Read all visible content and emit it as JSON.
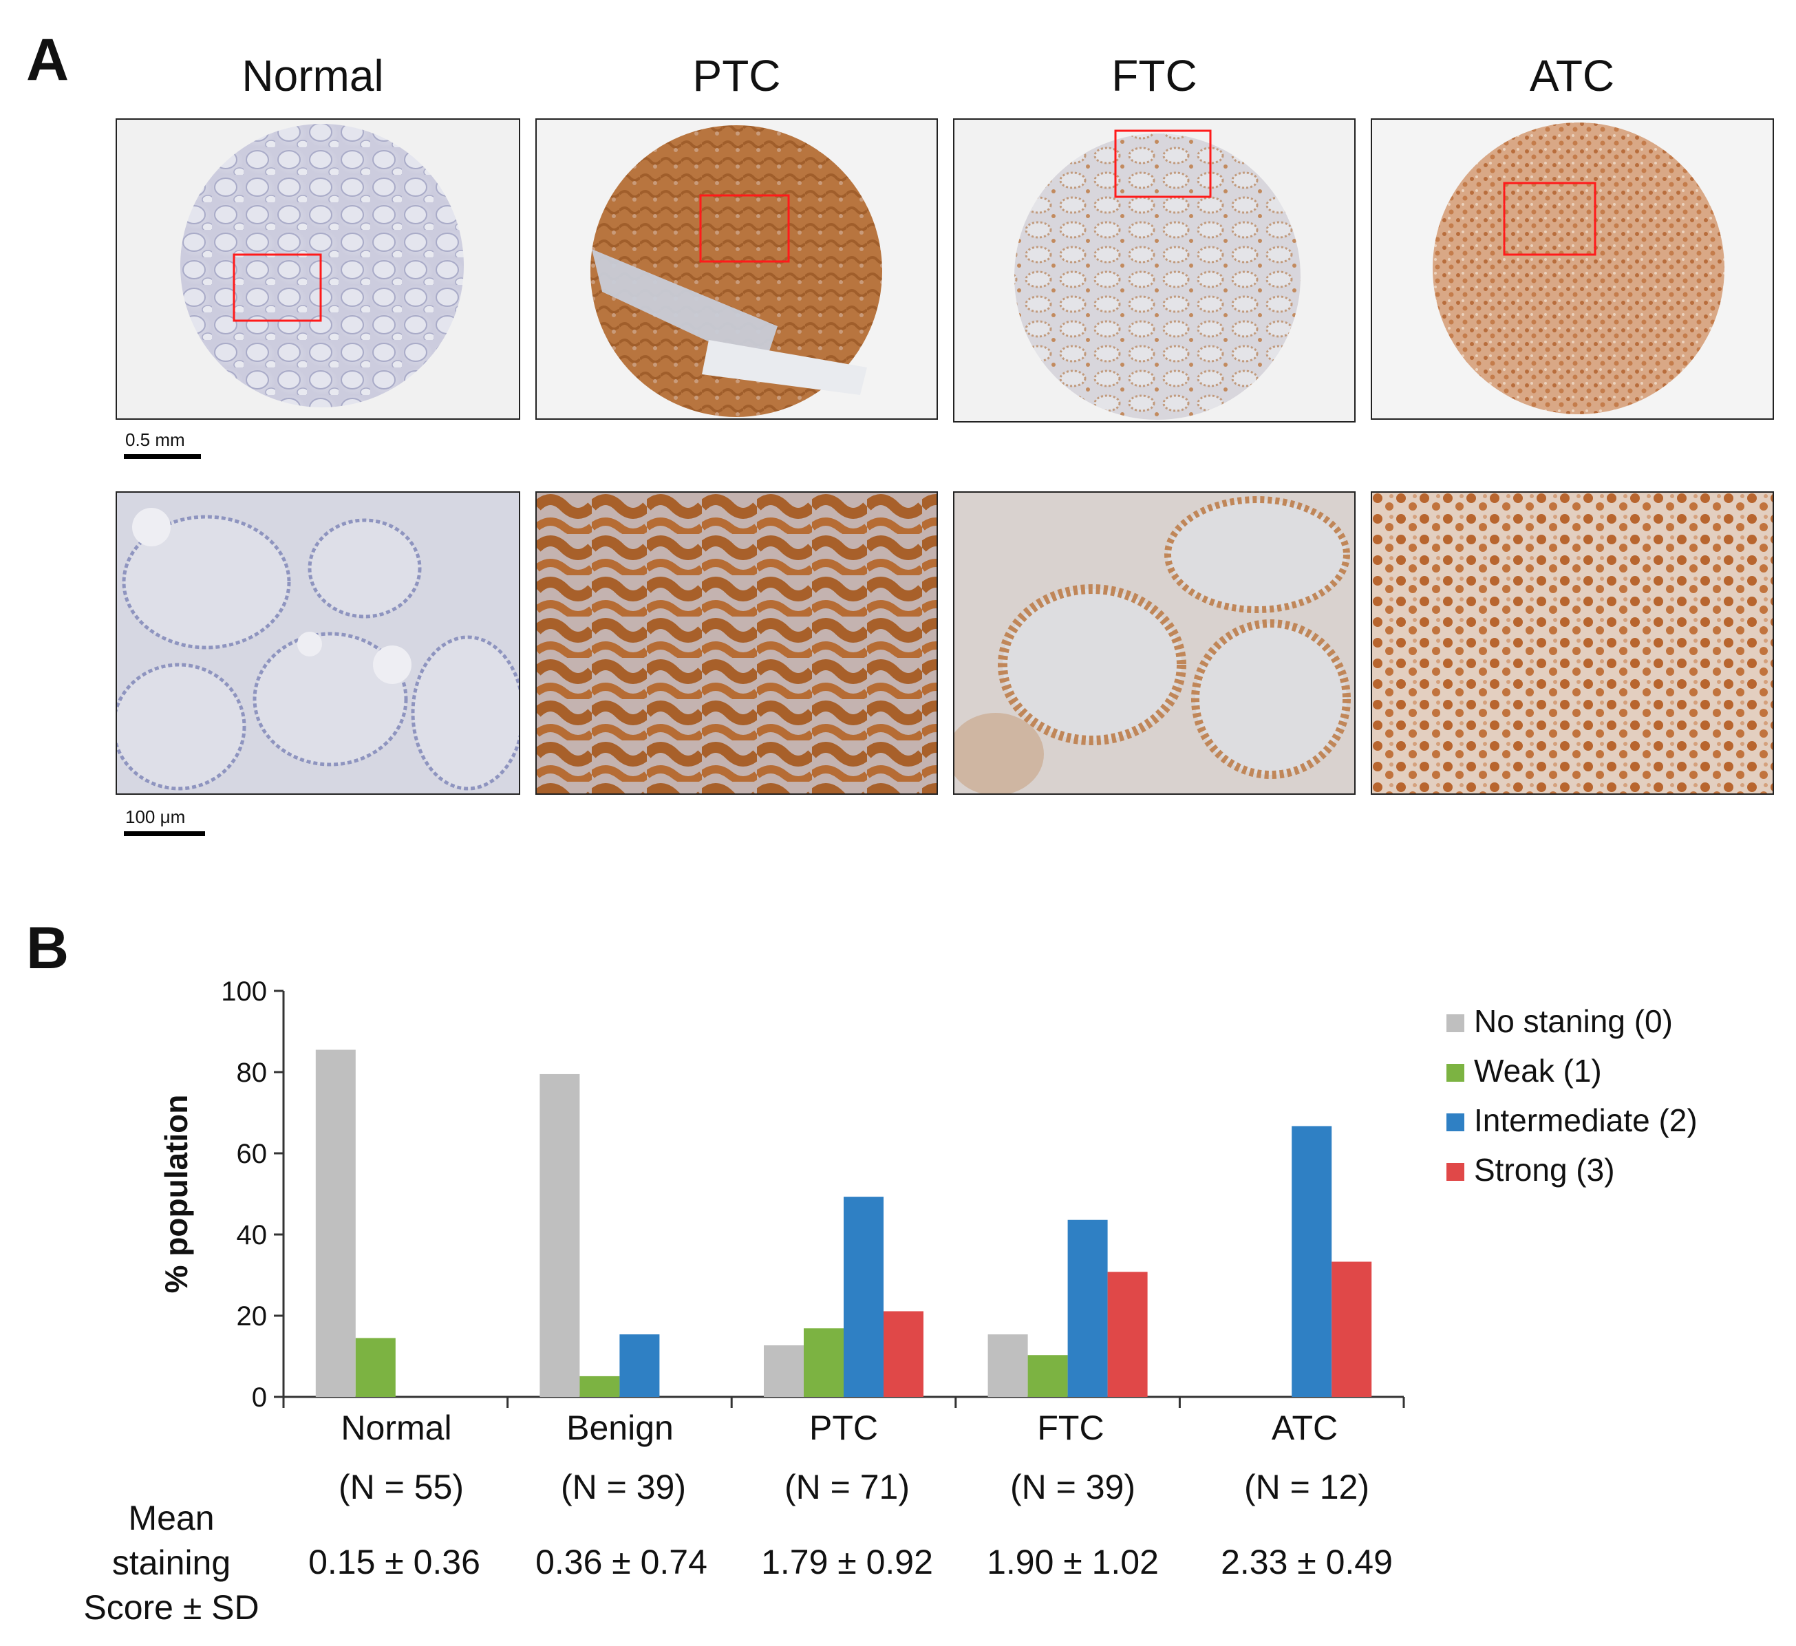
{
  "panel_a": {
    "letter": "A",
    "columns": [
      "Normal",
      "PTC",
      "FTC",
      "ATC"
    ],
    "scale_bars": {
      "top": "0.5 mm",
      "bottom": "100 μm"
    }
  },
  "panel_b": {
    "letter": "B",
    "mean_label_lines": [
      "Mean",
      "staining",
      "Score ± SD"
    ],
    "groups": [
      {
        "name": "Normal",
        "n": "(N = 55)",
        "mean": "0.15 ± 0.36"
      },
      {
        "name": "Benign",
        "n": "(N = 39)",
        "mean": "0.36 ± 0.74"
      },
      {
        "name": "PTC",
        "n": "(N = 71)",
        "mean": "1.79 ± 0.92"
      },
      {
        "name": "FTC",
        "n": "(N = 39)",
        "mean": "1.90 ± 1.02"
      },
      {
        "name": "ATC",
        "n": "(N = 12)",
        "mean": "2.33 ± 0.49"
      }
    ]
  },
  "chart_data": {
    "type": "bar",
    "categories": [
      "Normal",
      "Benign",
      "PTC",
      "FTC",
      "ATC"
    ],
    "ylabel": "% population",
    "xlabel": "",
    "ylim": [
      0,
      100
    ],
    "yticks": [
      0,
      20,
      40,
      60,
      80,
      100
    ],
    "legend_position": "right",
    "series": [
      {
        "name": "No staning (0)",
        "color": "#bfbfbf",
        "values": [
          85.5,
          79.5,
          12.7,
          15.4,
          0
        ]
      },
      {
        "name": "Weak (1)",
        "color": "#7cb342",
        "values": [
          14.5,
          5.1,
          16.9,
          10.3,
          0
        ]
      },
      {
        "name": "Intermediate (2)",
        "color": "#2f80c4",
        "values": [
          0,
          15.4,
          49.3,
          43.6,
          66.7
        ]
      },
      {
        "name": "Strong (3)",
        "color": "#e04848",
        "values": [
          0,
          0,
          21.1,
          30.8,
          33.3
        ]
      }
    ]
  }
}
